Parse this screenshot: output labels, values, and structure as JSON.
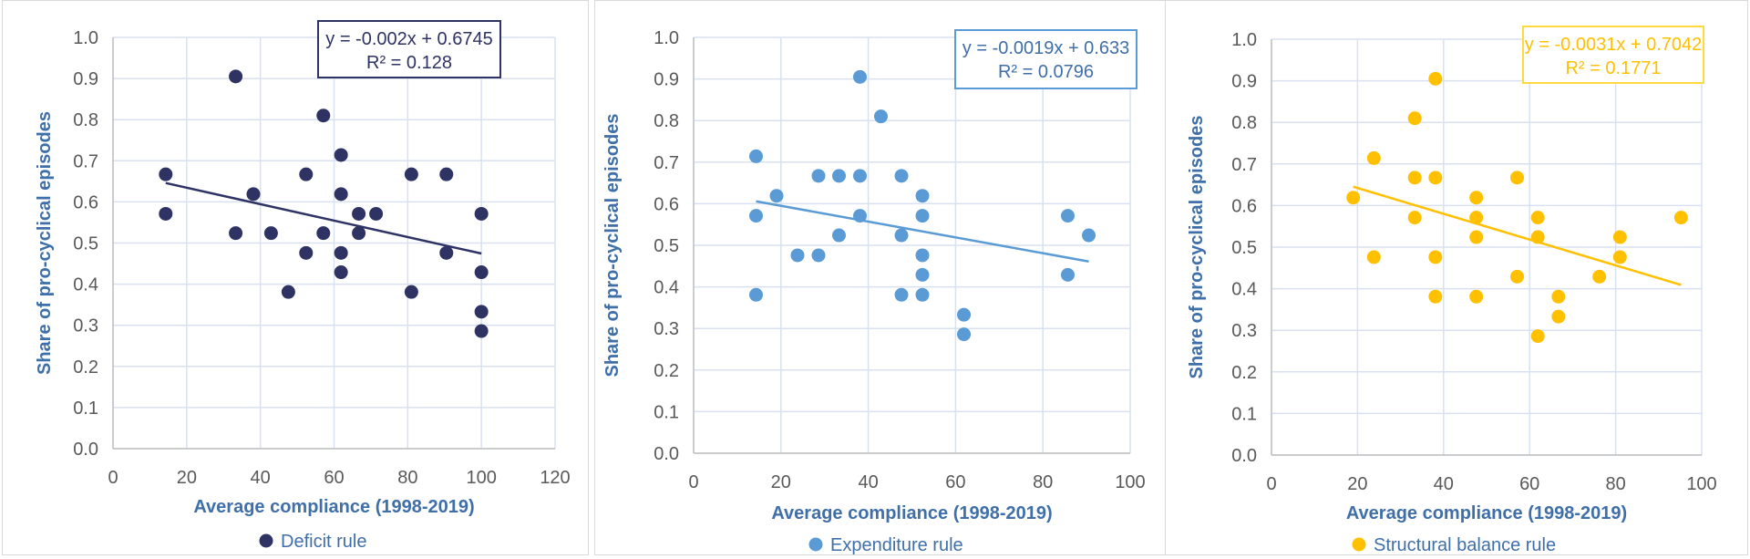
{
  "chart_data": [
    {
      "type": "scatter",
      "xlabel": "Average compliance (1998-2019)",
      "ylabel": "Share of pro-cyclical episodes",
      "xlim": [
        0,
        120
      ],
      "ylim": [
        0,
        1
      ],
      "xticks": [
        "0",
        "20",
        "40",
        "60",
        "80",
        "100",
        "120"
      ],
      "yticks": [
        "0.0",
        "0.1",
        "0.2",
        "0.3",
        "0.4",
        "0.5",
        "0.6",
        "0.7",
        "0.8",
        "0.9",
        "1.0"
      ],
      "grid": true,
      "legend": "bottom",
      "color": "#2e3364",
      "series": [
        {
          "name": "Deficit rule",
          "points": [
            [
              14.3,
              0.667
            ],
            [
              14.3,
              0.571
            ],
            [
              33.3,
              0.905
            ],
            [
              33.3,
              0.524
            ],
            [
              38.1,
              0.619
            ],
            [
              42.9,
              0.524
            ],
            [
              47.6,
              0.381
            ],
            [
              52.4,
              0.667
            ],
            [
              52.4,
              0.476
            ],
            [
              57.1,
              0.81
            ],
            [
              57.1,
              0.524
            ],
            [
              61.9,
              0.714
            ],
            [
              61.9,
              0.619
            ],
            [
              61.9,
              0.476
            ],
            [
              61.9,
              0.429
            ],
            [
              66.7,
              0.571
            ],
            [
              66.7,
              0.524
            ],
            [
              71.4,
              0.571
            ],
            [
              81,
              0.667
            ],
            [
              81,
              0.381
            ],
            [
              90.5,
              0.667
            ],
            [
              90.5,
              0.476
            ],
            [
              100,
              0.571
            ],
            [
              100,
              0.429
            ],
            [
              100,
              0.333
            ],
            [
              100,
              0.286
            ]
          ]
        }
      ],
      "trendline": {
        "slope": -0.002,
        "intercept": 0.6745,
        "x_range": [
          14.3,
          100
        ],
        "equation": "y = -0.002x + 0.6745",
        "r2": "R² = 0.128"
      }
    },
    {
      "type": "scatter",
      "xlabel": "Average compliance (1998-2019)",
      "ylabel": "Share of pro-cyclical episodes",
      "xlim": [
        0,
        100
      ],
      "ylim": [
        0,
        1
      ],
      "xticks": [
        "0",
        "20",
        "40",
        "60",
        "80",
        "100"
      ],
      "yticks": [
        "0.0",
        "0.1",
        "0.2",
        "0.3",
        "0.4",
        "0.5",
        "0.6",
        "0.7",
        "0.8",
        "0.9",
        "1.0"
      ],
      "grid": true,
      "legend": "bottom",
      "color": "#5b9bd5",
      "series": [
        {
          "name": "Expenditure rule",
          "points": [
            [
              14.3,
              0.714
            ],
            [
              14.3,
              0.571
            ],
            [
              14.3,
              0.381
            ],
            [
              19,
              0.619
            ],
            [
              23.8,
              0.476
            ],
            [
              28.6,
              0.667
            ],
            [
              28.6,
              0.476
            ],
            [
              33.3,
              0.667
            ],
            [
              33.3,
              0.524
            ],
            [
              38.1,
              0.905
            ],
            [
              38.1,
              0.667
            ],
            [
              38.1,
              0.571
            ],
            [
              42.9,
              0.81
            ],
            [
              47.6,
              0.667
            ],
            [
              47.6,
              0.524
            ],
            [
              47.6,
              0.381
            ],
            [
              52.4,
              0.619
            ],
            [
              52.4,
              0.571
            ],
            [
              52.4,
              0.476
            ],
            [
              52.4,
              0.429
            ],
            [
              52.4,
              0.381
            ],
            [
              61.9,
              0.333
            ],
            [
              61.9,
              0.286
            ],
            [
              85.7,
              0.571
            ],
            [
              85.7,
              0.429
            ],
            [
              90.5,
              0.524
            ]
          ]
        }
      ],
      "trendline": {
        "slope": -0.0019,
        "intercept": 0.633,
        "x_range": [
          14.3,
          90.5
        ],
        "equation": "y = -0.0019x + 0.633",
        "r2": "R² = 0.0796"
      }
    },
    {
      "type": "scatter",
      "xlabel": "Average compliance (1998-2019)",
      "ylabel": "Share of pro-cyclical episodes",
      "xlim": [
        0,
        100
      ],
      "ylim": [
        0,
        1
      ],
      "xticks": [
        "0",
        "20",
        "40",
        "60",
        "80",
        "100"
      ],
      "yticks": [
        "0.0",
        "0.1",
        "0.2",
        "0.3",
        "0.4",
        "0.5",
        "0.6",
        "0.7",
        "0.8",
        "0.9",
        "1.0"
      ],
      "grid": true,
      "legend": "bottom",
      "color": "#ffc000",
      "series": [
        {
          "name": "Structural balance rule",
          "points": [
            [
              19,
              0.619
            ],
            [
              23.8,
              0.714
            ],
            [
              23.8,
              0.476
            ],
            [
              33.3,
              0.81
            ],
            [
              33.3,
              0.667
            ],
            [
              33.3,
              0.571
            ],
            [
              38.1,
              0.905
            ],
            [
              38.1,
              0.667
            ],
            [
              38.1,
              0.476
            ],
            [
              38.1,
              0.381
            ],
            [
              47.6,
              0.619
            ],
            [
              47.6,
              0.571
            ],
            [
              47.6,
              0.524
            ],
            [
              47.6,
              0.381
            ],
            [
              57.1,
              0.667
            ],
            [
              57.1,
              0.429
            ],
            [
              61.9,
              0.571
            ],
            [
              61.9,
              0.524
            ],
            [
              61.9,
              0.286
            ],
            [
              66.7,
              0.381
            ],
            [
              66.7,
              0.333
            ],
            [
              76.2,
              0.429
            ],
            [
              81,
              0.524
            ],
            [
              81,
              0.476
            ],
            [
              95.2,
              0.571
            ]
          ]
        }
      ],
      "trendline": {
        "slope": -0.0031,
        "intercept": 0.7042,
        "x_range": [
          19,
          95.2
        ],
        "equation": "y = -0.0031x + 0.7042",
        "r2": "R² = 0.1771"
      }
    }
  ]
}
